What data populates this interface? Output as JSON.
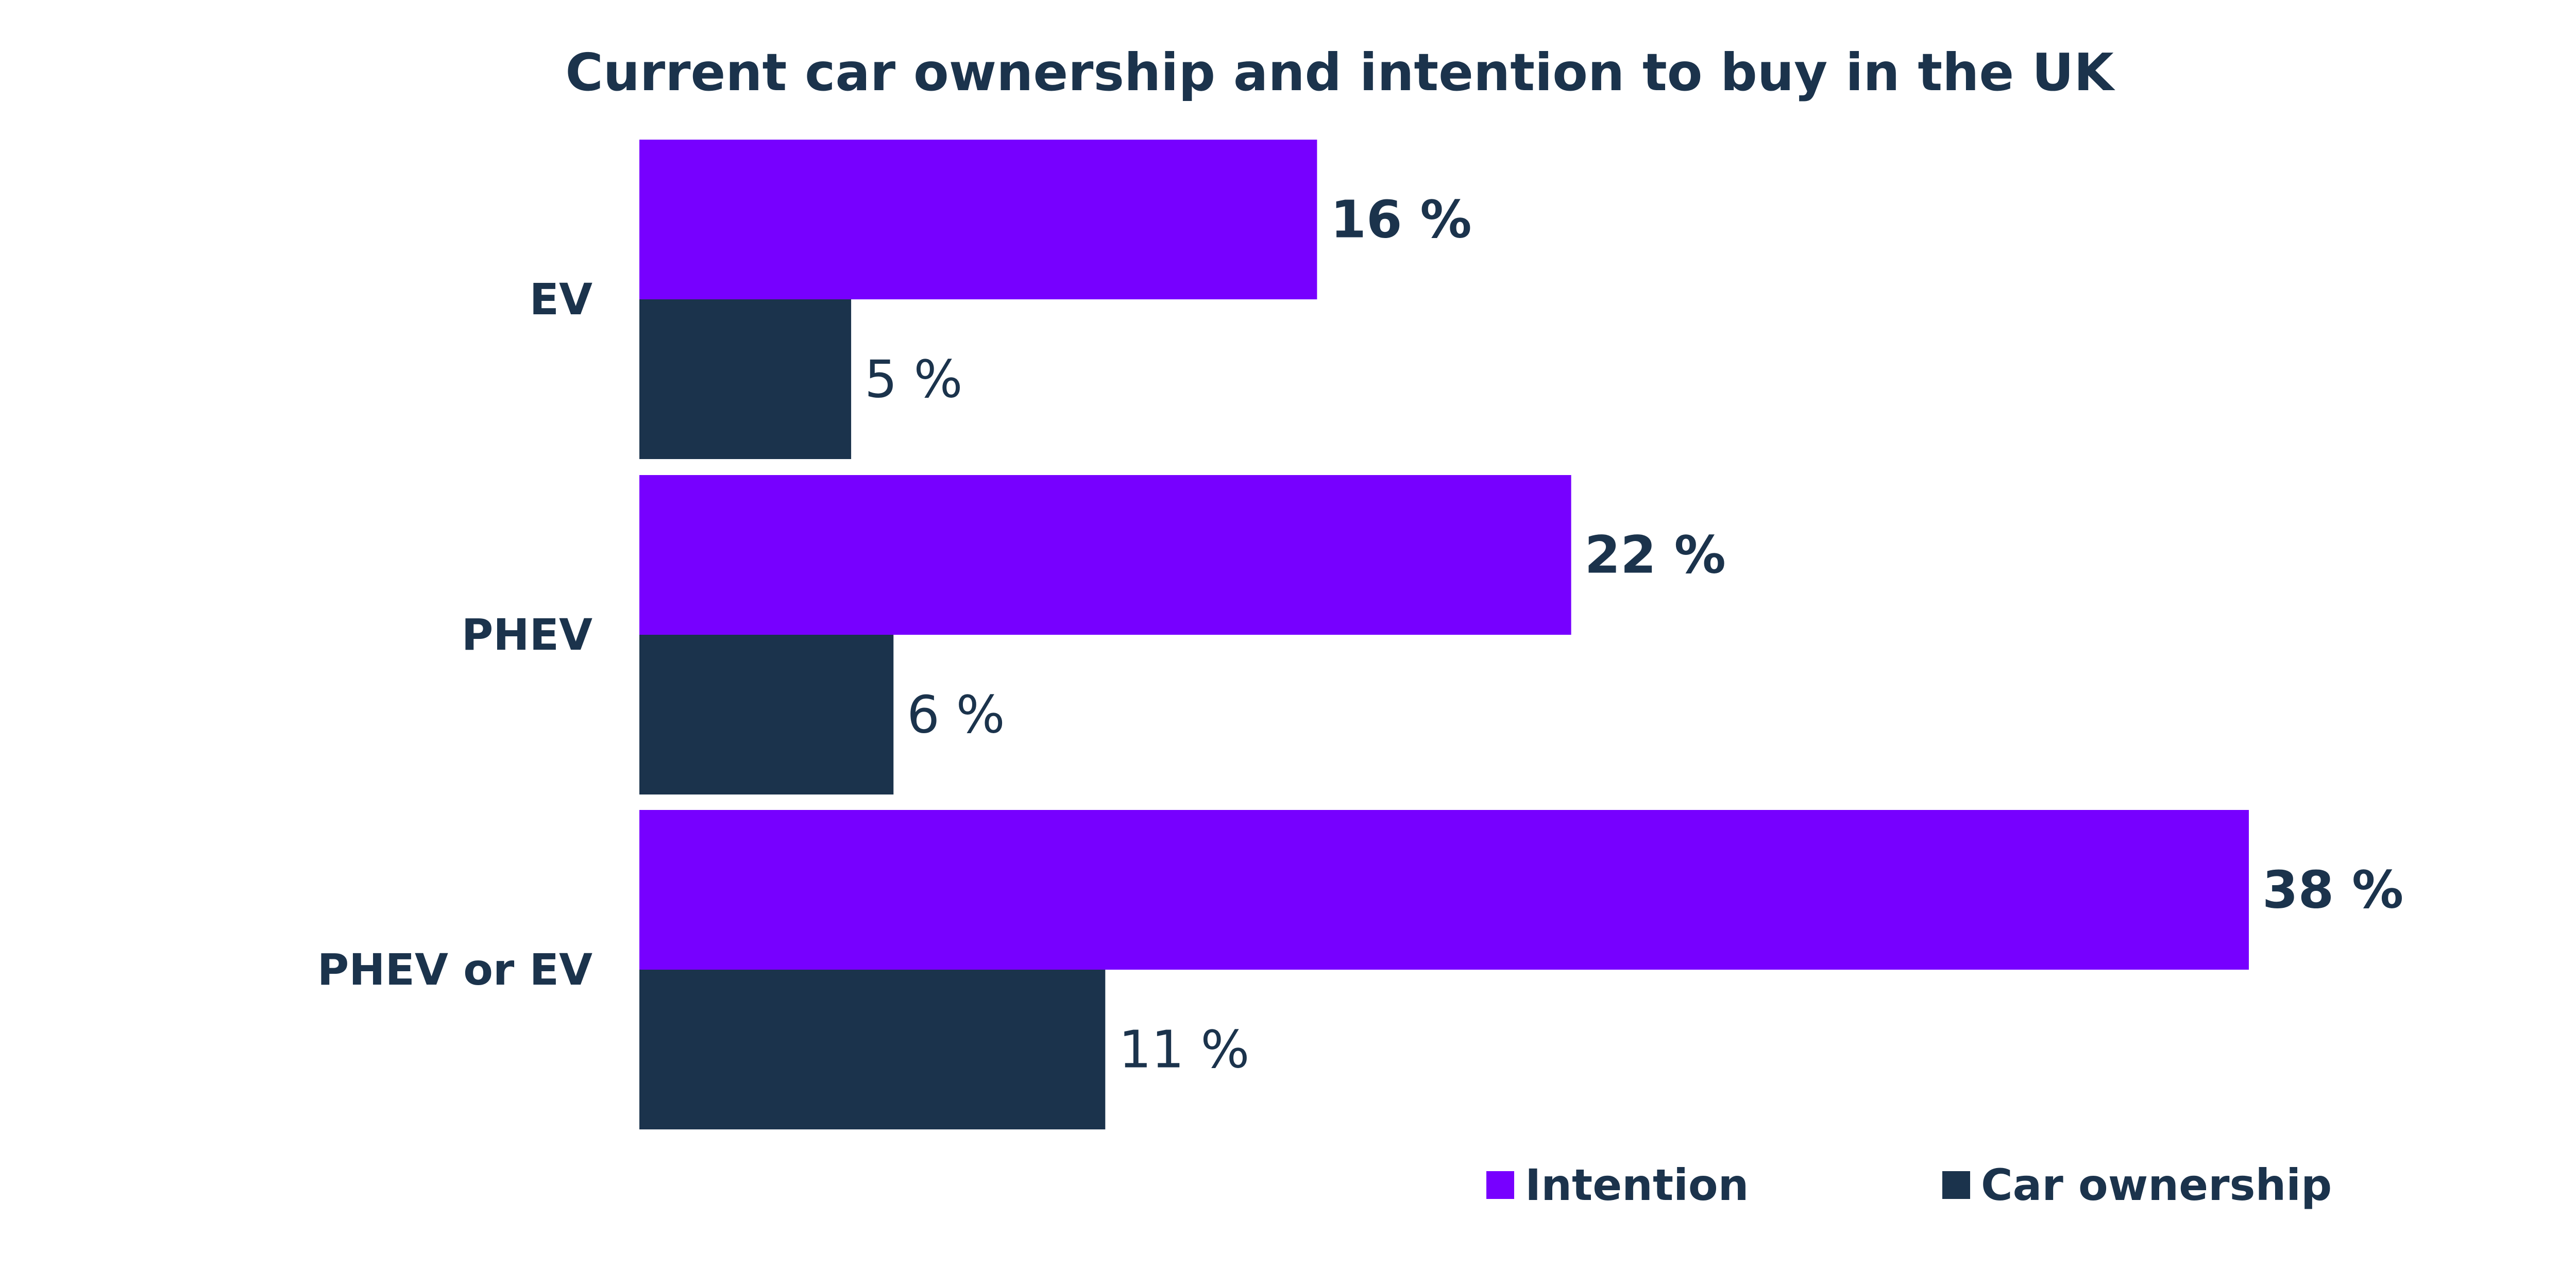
{
  "chart_data": {
    "type": "bar",
    "orientation": "horizontal",
    "title": "Current car ownership and intention to buy in the UK",
    "categories": [
      "EV",
      "PHEV",
      "PHEV or EV"
    ],
    "series": [
      {
        "name": "Intention",
        "values": [
          16,
          22,
          38
        ],
        "labels": [
          "16 %",
          "22 %",
          "38 %"
        ],
        "color": "#7700ff"
      },
      {
        "name": "Car ownership",
        "values": [
          5,
          6,
          11
        ],
        "labels": [
          "5 %",
          "6 %",
          "11 %"
        ],
        "color": "#1b334c"
      }
    ],
    "xlim": [
      0,
      38
    ],
    "grid": false,
    "legend_position": "bottom-right",
    "text_color": "#1b334c"
  }
}
